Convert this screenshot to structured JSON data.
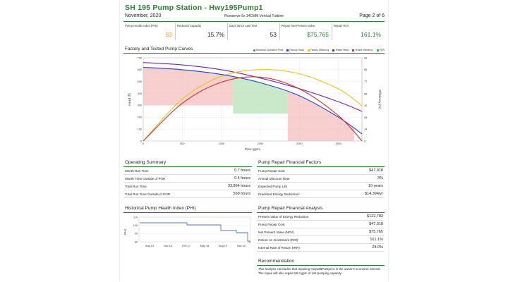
{
  "header": {
    "title": "SH 195 Pump Station - Hwy195Pump1",
    "date": "November, 2020",
    "subtitle": "Flowserve 5x 14CMM Vertical Turbine",
    "page": "Page 2 of 6"
  },
  "kpis": [
    {
      "label": "Pump Health Index (PHI)",
      "value": "83",
      "color": "#e6a817"
    },
    {
      "label": "Reduced Capacity",
      "value": "15.7%",
      "color": "#222222"
    },
    {
      "label": "Days Since Last Test",
      "value": "53",
      "color": "#222222"
    },
    {
      "label": "Repair Net Present Value",
      "value": "$75,765",
      "color": "#2e7d32"
    },
    {
      "label": "Repair ROI",
      "value": "161.1%",
      "color": "#2e7d32"
    }
  ],
  "pump_curves": {
    "section_title": "Factory and Tested Pump Curves",
    "legend": [
      {
        "label": "Historical Operation Point",
        "color": "#2e7d9a"
      },
      {
        "label": "Factory Head",
        "color": "#7b1fa2"
      },
      {
        "label": "Factory Efficiency",
        "color": "#e6c619"
      },
      {
        "label": "Tested Head",
        "color": "#1a3fd0"
      },
      {
        "label": "Tested Efficiency",
        "color": "#d32f2f"
      },
      {
        "label": "POR",
        "color": "#3cb44b"
      }
    ],
    "ylabel": "Head (ft)",
    "y2label": "Efficiency (%)",
    "xlabel": "Flow (gpm)"
  },
  "chart_data": {
    "type": "line",
    "x_ticks": [
      0,
      500,
      1000,
      1500,
      2000,
      2500
    ],
    "y_ticks": [
      0,
      100,
      200,
      300,
      400,
      500,
      600,
      700
    ],
    "y2_ticks": [
      0,
      14,
      28,
      42,
      56,
      71,
      85,
      99
    ],
    "xlim": [
      0,
      2800
    ],
    "ylim": [
      0,
      700
    ],
    "y2lim": [
      0,
      99
    ],
    "series": [
      {
        "name": "Factory Head",
        "axis": "left",
        "x": [
          0,
          500,
          1000,
          1500,
          2000,
          2500,
          2800
        ],
        "y": [
          660,
          640,
          600,
          530,
          440,
          330,
          250
        ]
      },
      {
        "name": "Factory Efficiency",
        "axis": "right",
        "x": [
          0,
          500,
          1000,
          1500,
          2000,
          2500,
          2800
        ],
        "y": [
          0,
          50,
          77,
          85,
          80,
          62,
          42
        ]
      },
      {
        "name": "Tested Head",
        "axis": "left",
        "x": [
          0,
          500,
          1000,
          1500,
          2000,
          2500,
          2800
        ],
        "y": [
          620,
          600,
          560,
          490,
          380,
          200,
          60
        ]
      },
      {
        "name": "Tested Efficiency",
        "axis": "right",
        "x": [
          0,
          500,
          1000,
          1500,
          2000,
          2500,
          2800
        ],
        "y": [
          0,
          45,
          70,
          76,
          62,
          30,
          0
        ]
      }
    ]
  },
  "operating_summary": {
    "title": "Operating Summary",
    "rows": [
      {
        "label": "Month Run Time",
        "value": "0.7 hours"
      },
      {
        "label": "Month Time Outside of POR",
        "value": "0.4 hours"
      },
      {
        "label": "Total Run Time",
        "value": "33,864 hours"
      },
      {
        "label": "Total Run Time Outside of POR",
        "value": "569 hours"
      }
    ]
  },
  "repair_factors": {
    "title": "Pump Repair Financial Factors",
    "rows": [
      {
        "label": "Pump Repair Cost",
        "value": "$47,018"
      },
      {
        "label": "Annual Discount Rate",
        "value": "3%"
      },
      {
        "label": "Expected Pump Life",
        "value": "10 years"
      },
      {
        "label": "Predicted Energy Reduction¹",
        "value": "$14,394/yr"
      }
    ]
  },
  "phi_history": {
    "title": "Historical Pump Health Index (PHI)",
    "ylabel": "PHI",
    "y_ticks": [
      "110",
      "100",
      "90",
      "80"
    ],
    "x_ticks": [
      "Aug 14",
      "Nov 15",
      "Feb 17",
      "May 18",
      "Aug 19",
      "Nov 20"
    ]
  },
  "financial_analysis": {
    "title": "Pump Repair Financial Analysis",
    "rows": [
      {
        "label": "Present Value of Energy Reduction",
        "value": "$122,783"
      },
      {
        "label": "Pump Repair Cost",
        "value": "$47,018"
      },
      {
        "label": "Net Present Value (NPV)",
        "value": "$75,765"
      },
      {
        "label": "Return on Investment (ROI)",
        "value": "161.1%"
      },
      {
        "label": "Internal Rate of Return (IRR)",
        "value": "28.0%"
      }
    ]
  },
  "recommendation": {
    "title": "Recommendation",
    "text": "This analysis concludes that repairing Hwy195Pump1 is in the owner's economic interest. The repair will also regain 55.3 gpm of lost pumping capacity."
  }
}
